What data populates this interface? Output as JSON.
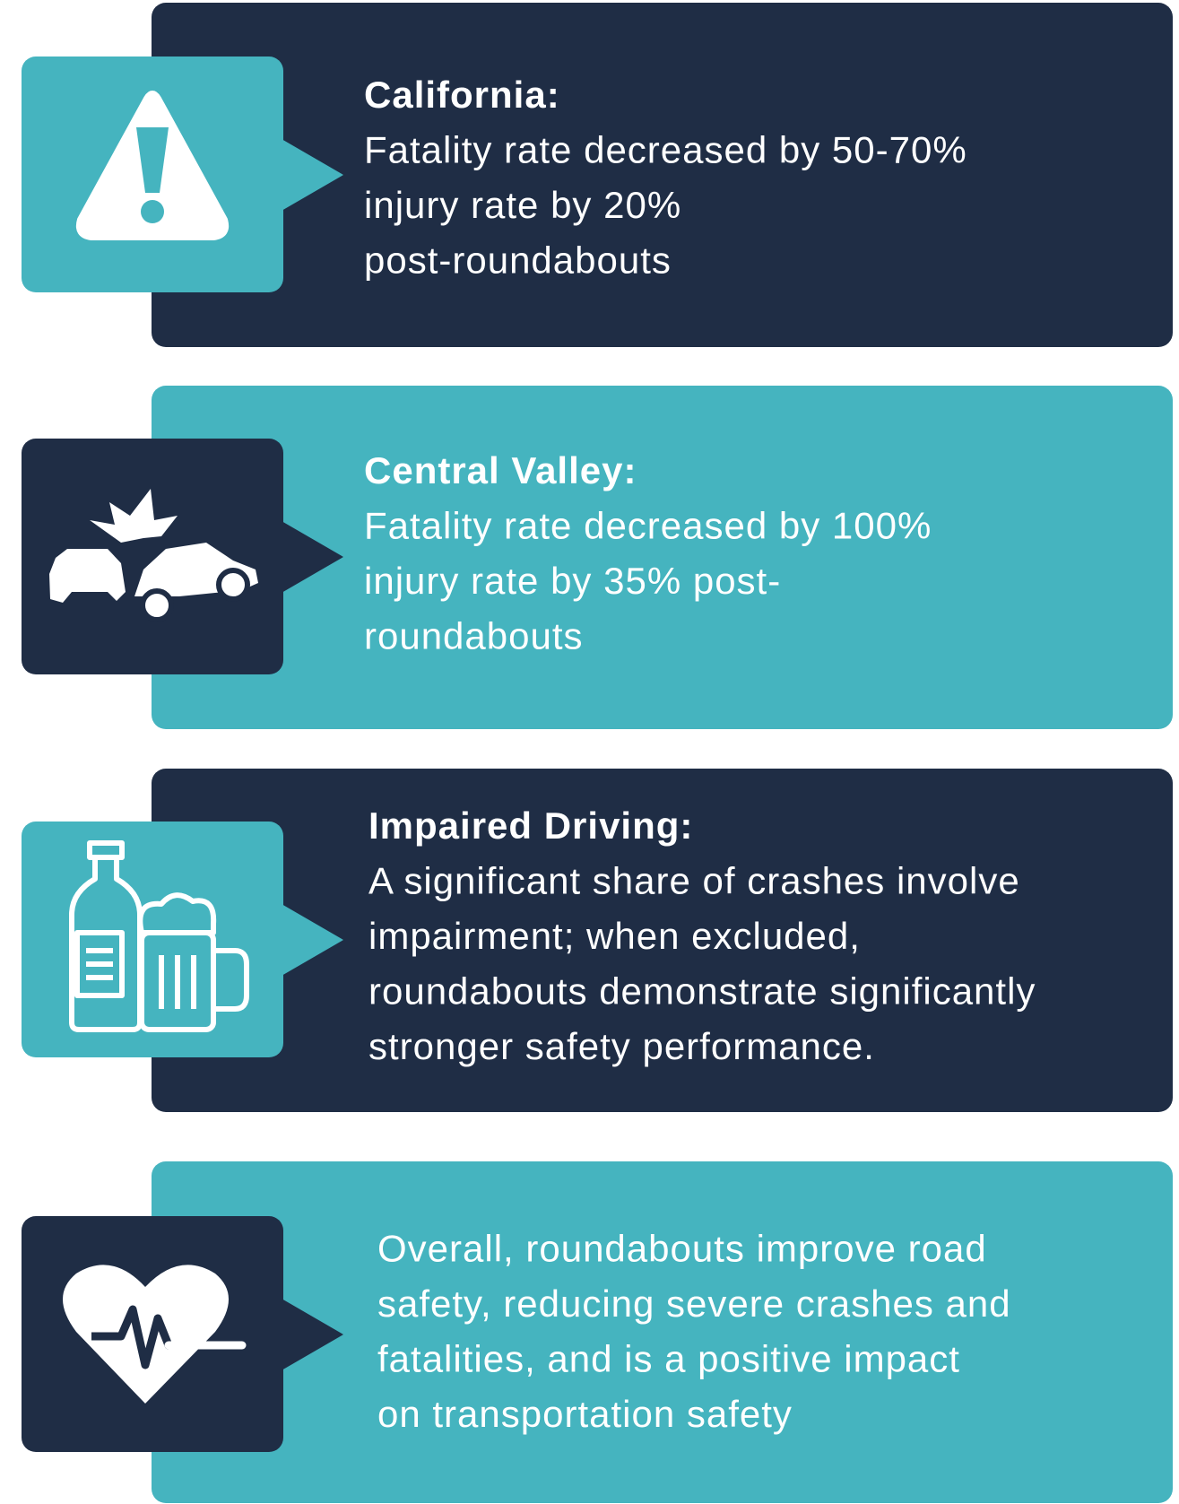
{
  "cards": [
    {
      "title": "California:",
      "lines": [
        "Fatality rate decreased by 50-70%",
        "injury rate by 20%",
        "post-roundabouts"
      ]
    },
    {
      "title": "Central Valley:",
      "lines": [
        "Fatality rate decreased by 100%",
        "injury rate by 35% post-",
        "roundabouts"
      ]
    },
    {
      "title": "Impaired Driving:",
      "lines": [
        "A significant share of crashes involve",
        "impairment; when excluded,",
        "roundabouts demonstrate significantly",
        "stronger safety performance."
      ]
    },
    {
      "lines": [
        "Overall, roundabouts improve road",
        "safety, reducing severe crashes and",
        "fatalities, and is a positive impact",
        "on transportation safety"
      ]
    }
  ]
}
